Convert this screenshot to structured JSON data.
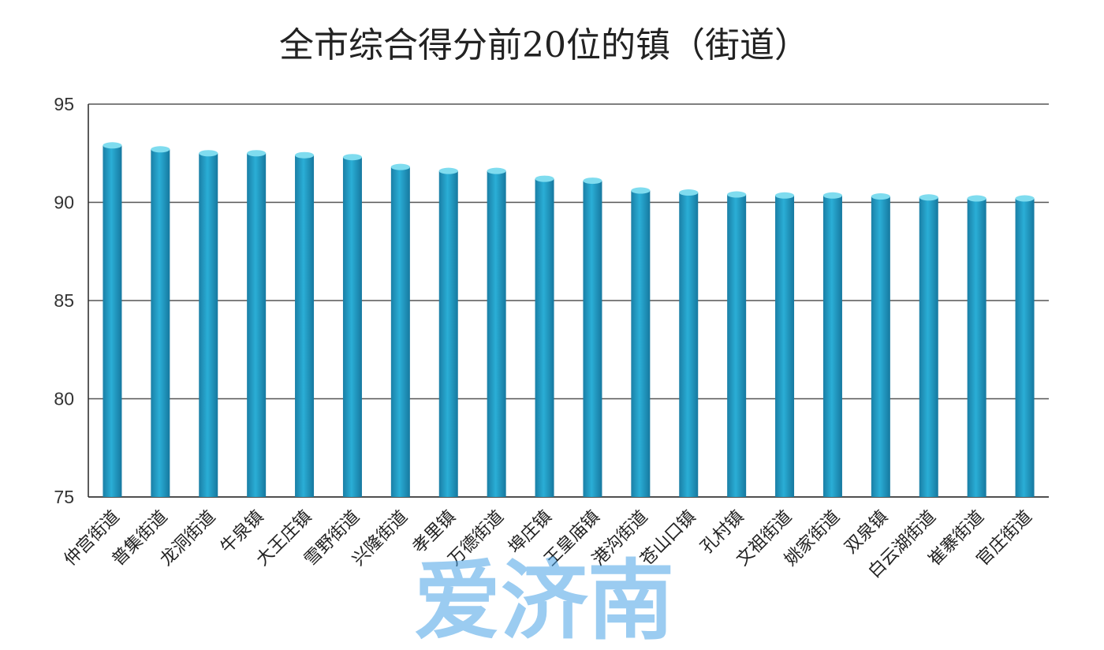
{
  "chart_data": {
    "type": "bar",
    "title": "全市综合得分前20位的镇（街道）",
    "xlabel": "",
    "ylabel": "",
    "ylim": [
      75,
      95
    ],
    "yticks": [
      75,
      80,
      85,
      90,
      95
    ],
    "grid": true,
    "categories": [
      "仲宫街道",
      "普集街道",
      "龙洞街道",
      "牛泉镇",
      "大王庄镇",
      "雪野街道",
      "兴隆街道",
      "孝里镇",
      "万德街道",
      "埠庄镇",
      "王皇庙镇",
      "港沟街道",
      "苍山口镇",
      "孔村镇",
      "文祖街道",
      "姚家街道",
      "双泉镇",
      "白云湖街道",
      "崔寨街道",
      "官庄街道"
    ],
    "values": [
      92.9,
      92.7,
      92.5,
      92.5,
      92.4,
      92.3,
      91.8,
      91.6,
      91.6,
      91.2,
      91.1,
      90.6,
      90.5,
      90.4,
      90.35,
      90.35,
      90.3,
      90.25,
      90.2,
      90.2
    ],
    "bar_color": "#1f9ec7",
    "bar_top_color": "#7fdcef"
  },
  "watermark": "爱济南"
}
